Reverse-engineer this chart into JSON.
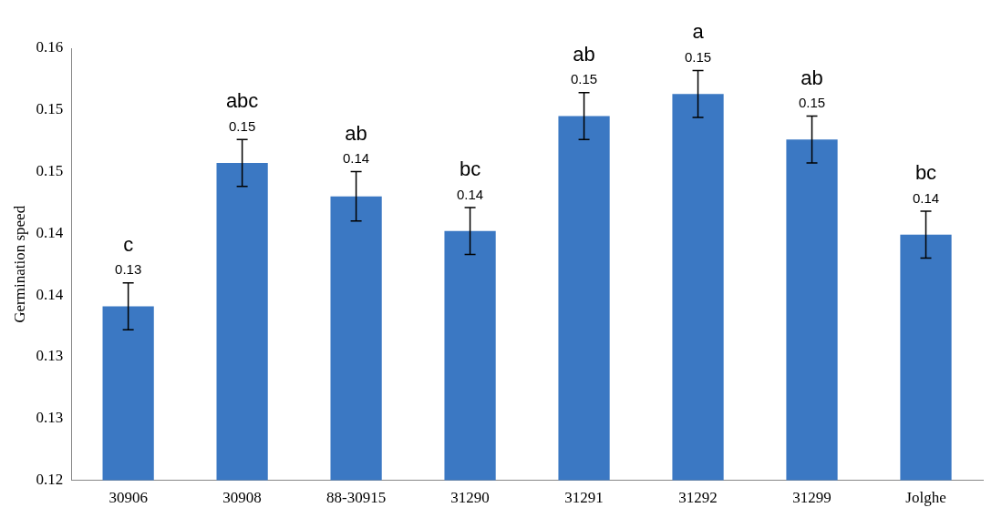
{
  "chart_data": {
    "type": "bar",
    "ylabel": "Germination speed",
    "categories": [
      "30906",
      "30908",
      "88-30915",
      "31290",
      "31291",
      "31292",
      "31299",
      "Jolghe"
    ],
    "values": [
      0.1341,
      0.1457,
      0.143,
      0.1402,
      0.1495,
      0.1513,
      0.1476,
      0.1399
    ],
    "errors": [
      0.0019,
      0.0019,
      0.002,
      0.0019,
      0.0019,
      0.0019,
      0.0019,
      0.0019
    ],
    "value_labels": [
      "0.13",
      "0.15",
      "0.14",
      "0.14",
      "0.15",
      "0.15",
      "0.15",
      "0.14"
    ],
    "color": "#3b78c3",
    "ylim": [
      0.12,
      0.155
    ],
    "yticks": [
      0.12,
      {
        "value": 0.125,
        "label": "0.13"
      },
      0.13,
      {
        "value": 0.135,
        "label": "0.14"
      },
      0.14,
      {
        "value": 0.145,
        "label": "0.15"
      },
      0.15,
      {
        "value": 0.155,
        "label": "0.16"
      }
    ],
    "annotations": [
      {
        "text": "c",
        "x": "30906",
        "y": 0.1341
      },
      {
        "text": "abc",
        "x": "30908",
        "y": 0.1457
      },
      {
        "text": "ab",
        "x": "88-30915",
        "y": 0.143
      },
      {
        "text": "bc",
        "x": "31290",
        "y": 0.1402
      },
      {
        "text": "ab",
        "x": "31291",
        "y": 0.1495
      },
      {
        "text": "a",
        "x": "31292",
        "y": 0.1513
      },
      {
        "text": "ab",
        "x": "31299",
        "y": 0.1476
      },
      {
        "text": "bc",
        "x": "Jolghe",
        "y": 0.1399
      }
    ],
    "grid": false,
    "legend": false
  }
}
